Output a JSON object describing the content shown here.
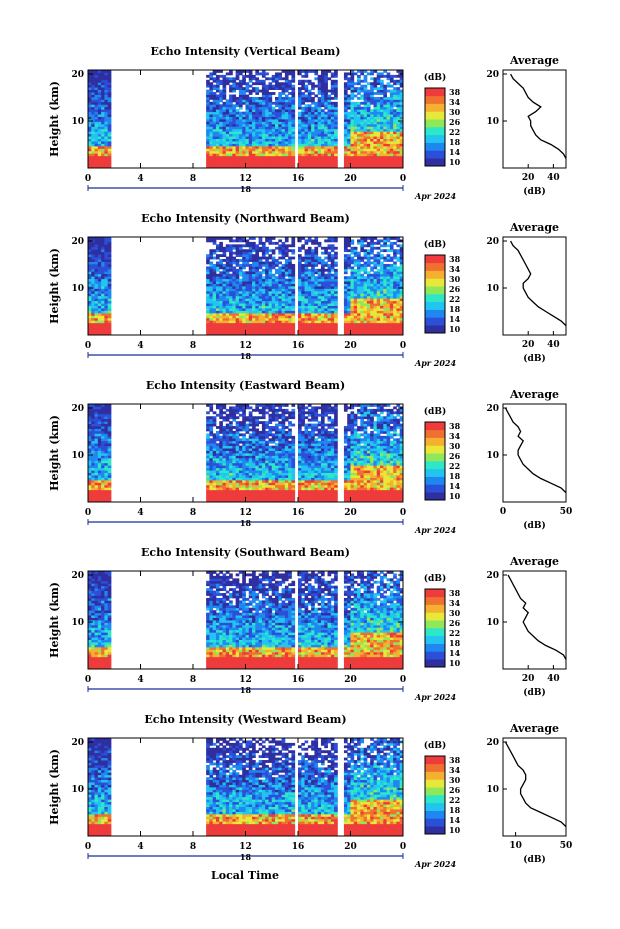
{
  "chart_data": {
    "type": "heatmap",
    "x_label": "Local Time",
    "x_ticks": [
      "0",
      "4",
      "8",
      "12",
      "16",
      "20",
      "0"
    ],
    "date_ticks": [
      "18"
    ],
    "date_label": "Apr 2024",
    "y_label": "Height (km)",
    "y_ticks": [
      "20",
      "10"
    ],
    "colorbar_unit": "(dB)",
    "colorbar_ticks": [
      "38",
      "34",
      "30",
      "26",
      "22",
      "18",
      "14",
      "10"
    ],
    "colorbar_range": [
      10,
      40
    ],
    "colors": [
      "#2f2fa0",
      "#2b4fd8",
      "#1e88f0",
      "#22c4f0",
      "#2ee6c8",
      "#8ee85a",
      "#e8e83a",
      "#f5b030",
      "#f07030",
      "#ee3b3b"
    ],
    "avg_title": "Average",
    "avg_xlabel": "(dB)",
    "data_gap_hours": [
      [
        1.8,
        9.0
      ],
      [
        15.8,
        16.0
      ],
      [
        16.9,
        17.1
      ],
      [
        17.9,
        18.1
      ],
      [
        19.0,
        19.5
      ],
      [
        20.4,
        20.6
      ]
    ],
    "panels": [
      {
        "title": "Echo Intensity (Vertical Beam)",
        "avg_ticks": [
          "20",
          "40"
        ],
        "avg_xlim": [
          0,
          50
        ],
        "avg_profile": [
          [
            50,
            2
          ],
          [
            48,
            3
          ],
          [
            44,
            4
          ],
          [
            38,
            5
          ],
          [
            30,
            6
          ],
          [
            26,
            7
          ],
          [
            24,
            8
          ],
          [
            22,
            9
          ],
          [
            22,
            10
          ],
          [
            20,
            11
          ],
          [
            26,
            12
          ],
          [
            30,
            13
          ],
          [
            24,
            14
          ],
          [
            20,
            15
          ],
          [
            18,
            16
          ],
          [
            16,
            17
          ],
          [
            12,
            18
          ],
          [
            8,
            19
          ],
          [
            6,
            20
          ]
        ]
      },
      {
        "title": "Echo Intensity (Northward Beam)",
        "avg_ticks": [
          "20",
          "40"
        ],
        "avg_xlim": [
          0,
          50
        ],
        "avg_profile": [
          [
            50,
            2
          ],
          [
            46,
            3
          ],
          [
            40,
            4
          ],
          [
            34,
            5
          ],
          [
            28,
            6
          ],
          [
            24,
            7
          ],
          [
            20,
            8
          ],
          [
            18,
            9
          ],
          [
            16,
            10
          ],
          [
            16,
            11
          ],
          [
            20,
            12
          ],
          [
            22,
            13
          ],
          [
            20,
            14
          ],
          [
            18,
            15
          ],
          [
            16,
            16
          ],
          [
            14,
            17
          ],
          [
            12,
            18
          ],
          [
            8,
            19
          ],
          [
            6,
            20
          ]
        ]
      },
      {
        "title": "Echo Intensity (Eastward Beam)",
        "avg_ticks": [
          "0",
          "50"
        ],
        "avg_xlim": [
          0,
          50
        ],
        "avg_profile": [
          [
            50,
            2
          ],
          [
            46,
            3
          ],
          [
            38,
            4
          ],
          [
            30,
            5
          ],
          [
            24,
            6
          ],
          [
            20,
            7
          ],
          [
            16,
            8
          ],
          [
            14,
            9
          ],
          [
            12,
            10
          ],
          [
            12,
            11
          ],
          [
            14,
            12
          ],
          [
            16,
            13
          ],
          [
            12,
            14
          ],
          [
            14,
            15
          ],
          [
            12,
            16
          ],
          [
            8,
            17
          ],
          [
            6,
            18
          ],
          [
            4,
            19
          ],
          [
            2,
            20
          ]
        ]
      },
      {
        "title": "Echo Intensity (Southward Beam)",
        "avg_ticks": [
          "20",
          "40"
        ],
        "avg_xlim": [
          0,
          50
        ],
        "avg_profile": [
          [
            50,
            2
          ],
          [
            48,
            3
          ],
          [
            42,
            4
          ],
          [
            34,
            5
          ],
          [
            28,
            6
          ],
          [
            24,
            7
          ],
          [
            20,
            8
          ],
          [
            18,
            9
          ],
          [
            16,
            10
          ],
          [
            18,
            11
          ],
          [
            20,
            12
          ],
          [
            16,
            13
          ],
          [
            18,
            14
          ],
          [
            14,
            15
          ],
          [
            12,
            16
          ],
          [
            10,
            17
          ],
          [
            8,
            18
          ],
          [
            6,
            19
          ],
          [
            4,
            20
          ]
        ]
      },
      {
        "title": "Echo Intensity (Westward Beam)",
        "avg_ticks": [
          "10",
          "50"
        ],
        "avg_xlim": [
          0,
          50
        ],
        "avg_profile": [
          [
            50,
            2
          ],
          [
            46,
            3
          ],
          [
            38,
            4
          ],
          [
            30,
            5
          ],
          [
            22,
            6
          ],
          [
            18,
            7
          ],
          [
            16,
            8
          ],
          [
            14,
            9
          ],
          [
            14,
            10
          ],
          [
            16,
            11
          ],
          [
            18,
            12
          ],
          [
            18,
            13
          ],
          [
            16,
            14
          ],
          [
            12,
            15
          ],
          [
            10,
            16
          ],
          [
            8,
            17
          ],
          [
            6,
            18
          ],
          [
            4,
            19
          ],
          [
            2,
            20
          ]
        ]
      }
    ]
  }
}
